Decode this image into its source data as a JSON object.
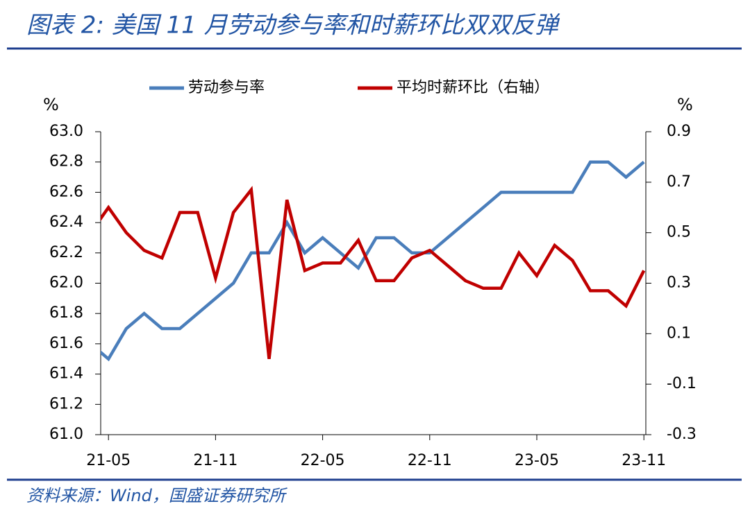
{
  "chart_data": {
    "type": "line",
    "title": "图表 2:  美国 11 月劳动参与率和时薪环比双双反弹",
    "source": "资料来源：Wind，国盛证券研究所",
    "ylabel": "%",
    "y2label": "%",
    "categories": [
      null,
      "21-05",
      null,
      null,
      null,
      null,
      null,
      "21-11",
      null,
      null,
      null,
      null,
      null,
      "22-05",
      null,
      null,
      null,
      null,
      null,
      "22-11",
      null,
      null,
      null,
      null,
      null,
      "23-05",
      null,
      null,
      null,
      null,
      null,
      "23-11"
    ],
    "series": [
      {
        "name": "劳动参与率",
        "color": "#4a7ebb",
        "values": [
          61.6,
          61.5,
          61.7,
          61.8,
          61.7,
          61.7,
          61.8,
          61.9,
          62.0,
          62.2,
          62.2,
          62.4,
          62.2,
          62.3,
          62.2,
          62.1,
          62.3,
          62.3,
          62.2,
          62.2,
          62.3,
          62.4,
          62.5,
          62.6,
          62.6,
          62.6,
          62.6,
          62.6,
          62.8,
          62.8,
          62.7,
          62.8
        ]
      },
      {
        "name": "平均时薪环比（右轴）",
        "color": "#c00000",
        "axis": "y2",
        "values": [
          0.5,
          0.6,
          0.5,
          0.43,
          0.4,
          0.58,
          0.58,
          0.32,
          0.58,
          0.67,
          0.0,
          0.63,
          0.35,
          0.38,
          0.38,
          0.47,
          0.31,
          0.31,
          0.4,
          0.43,
          0.37,
          0.31,
          0.28,
          0.28,
          0.42,
          0.33,
          0.45,
          0.39,
          0.27,
          0.27,
          0.21,
          0.35
        ]
      }
    ],
    "ylim": [
      61.0,
      63.0
    ],
    "yticks": [
      {
        "value": 61.0,
        "label": "61.0"
      },
      61.2,
      61.4,
      61.6,
      61.8,
      {
        "value": 62.0,
        "label": "62.0"
      },
      62.2,
      62.4,
      62.6,
      62.8,
      {
        "value": 63.0,
        "label": "63.0"
      }
    ],
    "y2lim": [
      -0.3,
      0.9
    ],
    "y2ticks": [
      -0.3,
      -0.1,
      0.1,
      0.3,
      0.5,
      0.7,
      0.9
    ],
    "grid": false,
    "legend": "top"
  }
}
